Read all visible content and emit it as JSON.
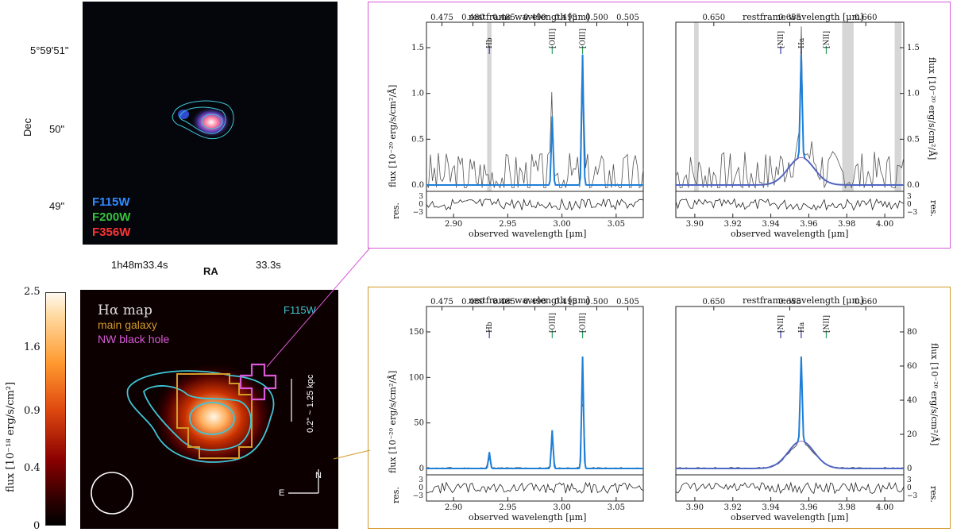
{
  "rgb_panel": {
    "dec_ticks": [
      "5°59'51\"",
      "50\"",
      "49\""
    ],
    "ra_ticks": [
      "1h48m33.4s",
      "33.3s"
    ],
    "ra_label": "RA",
    "dec_label": "Dec",
    "filters": [
      {
        "name": "F115W",
        "color": "#2f8cff"
      },
      {
        "name": "F200W",
        "color": "#36c23a"
      },
      {
        "name": "F356W",
        "color": "#ff3333"
      }
    ]
  },
  "ha_map": {
    "title": "Hα map",
    "main_label": "main galaxy",
    "bh_label": "NW black hole",
    "filter_label": "F115W",
    "scale_label": "0.2\" ~ 1.25 kpc",
    "north": "N",
    "east": "E"
  },
  "colorbar": {
    "ticks": [
      "2.5",
      "1.6",
      "0.9",
      "0.4",
      "0"
    ],
    "label": "flux [10⁻¹⁸ erg/s/cm²]"
  },
  "spectra": {
    "top_axis_label": "restframe wavelength [μm]",
    "bottom_axis_label": "observed wavelength [μm]",
    "flux_label": "flux [10⁻²⁰ erg/s/cm²/Å]",
    "res_label": "res.",
    "oiii_top_ticks": [
      "0.475",
      "0.480",
      "0.485",
      "0.490",
      "0.495",
      "0.500",
      "0.505"
    ],
    "oiii_bottom_ticks": [
      "2.90",
      "2.95",
      "3.00",
      "3.05"
    ],
    "ha_top_ticks": [
      "0.650",
      "0.655",
      "0.660"
    ],
    "ha_bottom_ticks": [
      "3.90",
      "3.92",
      "3.94",
      "3.96",
      "3.98",
      "4.00"
    ],
    "res_ticks": [
      "3",
      "0",
      "−3"
    ],
    "lines_oiii": [
      "Hb",
      "[OIII]",
      "[OIII]"
    ],
    "lines_ha": [
      "[NII]",
      "Ha",
      "[NII]"
    ],
    "bh_oiii_yticks": [
      "0.0",
      "0.5",
      "1.0",
      "1.5"
    ],
    "bh_ha_yticks": [
      "0.0",
      "0.5",
      "1.0",
      "1.5"
    ],
    "main_oiii_yticks": [
      "0",
      "50",
      "100",
      "150"
    ],
    "main_ha_yticks": [
      "0",
      "20",
      "40",
      "60",
      "80"
    ]
  },
  "colors": {
    "bh_box": "#d85ad8",
    "main_box": "#d39a2a",
    "contour": "#3fc6d6",
    "model": "#1e7fd8"
  }
}
